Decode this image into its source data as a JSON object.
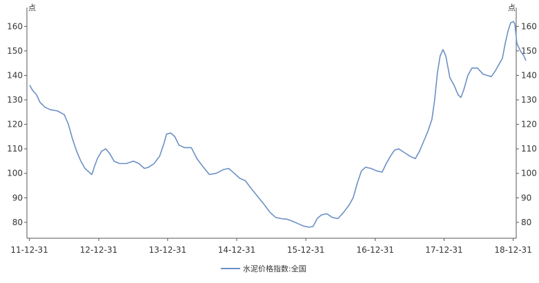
{
  "chart_data": {
    "type": "line",
    "title": "",
    "xlabel": "",
    "ylabel": "",
    "y_unit_left": "点",
    "y_unit_right": "点",
    "ylim": [
      73.5,
      166
    ],
    "yticks": [
      80,
      90,
      100,
      110,
      120,
      130,
      140,
      150,
      160
    ],
    "xlim": [
      2011.96,
      2019.04
    ],
    "xticks": [
      {
        "x": 2011.996,
        "label": "11-12-31"
      },
      {
        "x": 2012.999,
        "label": "12-12-31"
      },
      {
        "x": 2013.996,
        "label": "13-12-31"
      },
      {
        "x": 2014.996,
        "label": "14-12-31"
      },
      {
        "x": 2015.996,
        "label": "15-12-31"
      },
      {
        "x": 2016.999,
        "label": "16-12-31"
      },
      {
        "x": 2017.996,
        "label": "17-12-31"
      },
      {
        "x": 2018.996,
        "label": "18-12-31"
      }
    ],
    "grid": false,
    "legend_position": "bottom-center",
    "series": [
      {
        "name": "水泥价格指数:全国",
        "color": "#6b8fc4",
        "points": [
          [
            2012.0,
            136
          ],
          [
            2012.04,
            134
          ],
          [
            2012.1,
            132
          ],
          [
            2012.15,
            129
          ],
          [
            2012.22,
            127
          ],
          [
            2012.3,
            126
          ],
          [
            2012.4,
            125.5
          ],
          [
            2012.5,
            124
          ],
          [
            2012.56,
            120
          ],
          [
            2012.62,
            114
          ],
          [
            2012.68,
            109
          ],
          [
            2012.74,
            105
          ],
          [
            2012.8,
            102
          ],
          [
            2012.86,
            100.5
          ],
          [
            2012.9,
            99.5
          ],
          [
            2012.94,
            103
          ],
          [
            2012.98,
            106
          ],
          [
            2013.04,
            109
          ],
          [
            2013.1,
            110
          ],
          [
            2013.16,
            108
          ],
          [
            2013.22,
            105
          ],
          [
            2013.3,
            104
          ],
          [
            2013.4,
            104
          ],
          [
            2013.5,
            105
          ],
          [
            2013.58,
            104
          ],
          [
            2013.66,
            102
          ],
          [
            2013.72,
            102.5
          ],
          [
            2013.8,
            104
          ],
          [
            2013.88,
            107
          ],
          [
            2013.94,
            112
          ],
          [
            2013.98,
            116
          ],
          [
            2014.04,
            116.5
          ],
          [
            2014.1,
            115
          ],
          [
            2014.16,
            111.5
          ],
          [
            2014.24,
            110.5
          ],
          [
            2014.34,
            110.5
          ],
          [
            2014.42,
            106
          ],
          [
            2014.5,
            103
          ],
          [
            2014.6,
            99.5
          ],
          [
            2014.7,
            100
          ],
          [
            2014.8,
            101.5
          ],
          [
            2014.88,
            102
          ],
          [
            2014.96,
            100
          ],
          [
            2015.04,
            98
          ],
          [
            2015.12,
            97
          ],
          [
            2015.2,
            94
          ],
          [
            2015.3,
            90.5
          ],
          [
            2015.4,
            87
          ],
          [
            2015.48,
            84
          ],
          [
            2015.56,
            82
          ],
          [
            2015.64,
            81.5
          ],
          [
            2015.72,
            81.3
          ],
          [
            2015.8,
            80.5
          ],
          [
            2015.88,
            79.5
          ],
          [
            2015.96,
            78.5
          ],
          [
            2016.04,
            78
          ],
          [
            2016.1,
            78.3
          ],
          [
            2016.16,
            81.5
          ],
          [
            2016.22,
            83
          ],
          [
            2016.3,
            83.5
          ],
          [
            2016.38,
            82
          ],
          [
            2016.46,
            81.5
          ],
          [
            2016.54,
            84
          ],
          [
            2016.62,
            87
          ],
          [
            2016.68,
            90
          ],
          [
            2016.74,
            96
          ],
          [
            2016.8,
            101
          ],
          [
            2016.86,
            102.5
          ],
          [
            2016.94,
            102
          ],
          [
            2017.02,
            101
          ],
          [
            2017.1,
            100.5
          ],
          [
            2017.16,
            104
          ],
          [
            2017.22,
            107
          ],
          [
            2017.28,
            109.5
          ],
          [
            2017.34,
            110
          ],
          [
            2017.42,
            108.5
          ],
          [
            2017.5,
            107
          ],
          [
            2017.58,
            106
          ],
          [
            2017.64,
            109
          ],
          [
            2017.7,
            113
          ],
          [
            2017.76,
            117
          ],
          [
            2017.82,
            122
          ],
          [
            2017.86,
            130
          ],
          [
            2017.9,
            141
          ],
          [
            2017.94,
            148
          ],
          [
            2017.98,
            150.5
          ],
          [
            2018.02,
            148
          ],
          [
            2018.08,
            139
          ],
          [
            2018.14,
            136
          ],
          [
            2018.2,
            132
          ],
          [
            2018.24,
            131
          ],
          [
            2018.28,
            134
          ],
          [
            2018.34,
            140
          ],
          [
            2018.4,
            143
          ],
          [
            2018.48,
            143
          ],
          [
            2018.56,
            140.5
          ],
          [
            2018.62,
            140
          ],
          [
            2018.68,
            139.5
          ],
          [
            2018.74,
            142
          ],
          [
            2018.8,
            145
          ],
          [
            2018.84,
            147
          ],
          [
            2018.88,
            153
          ],
          [
            2018.92,
            158
          ],
          [
            2018.96,
            161.5
          ],
          [
            2019.0,
            162
          ],
          [
            2019.02,
            161
          ],
          [
            2019.05,
            153
          ],
          [
            2019.1,
            150
          ],
          [
            2019.15,
            148
          ],
          [
            2019.18,
            146
          ]
        ]
      }
    ]
  }
}
